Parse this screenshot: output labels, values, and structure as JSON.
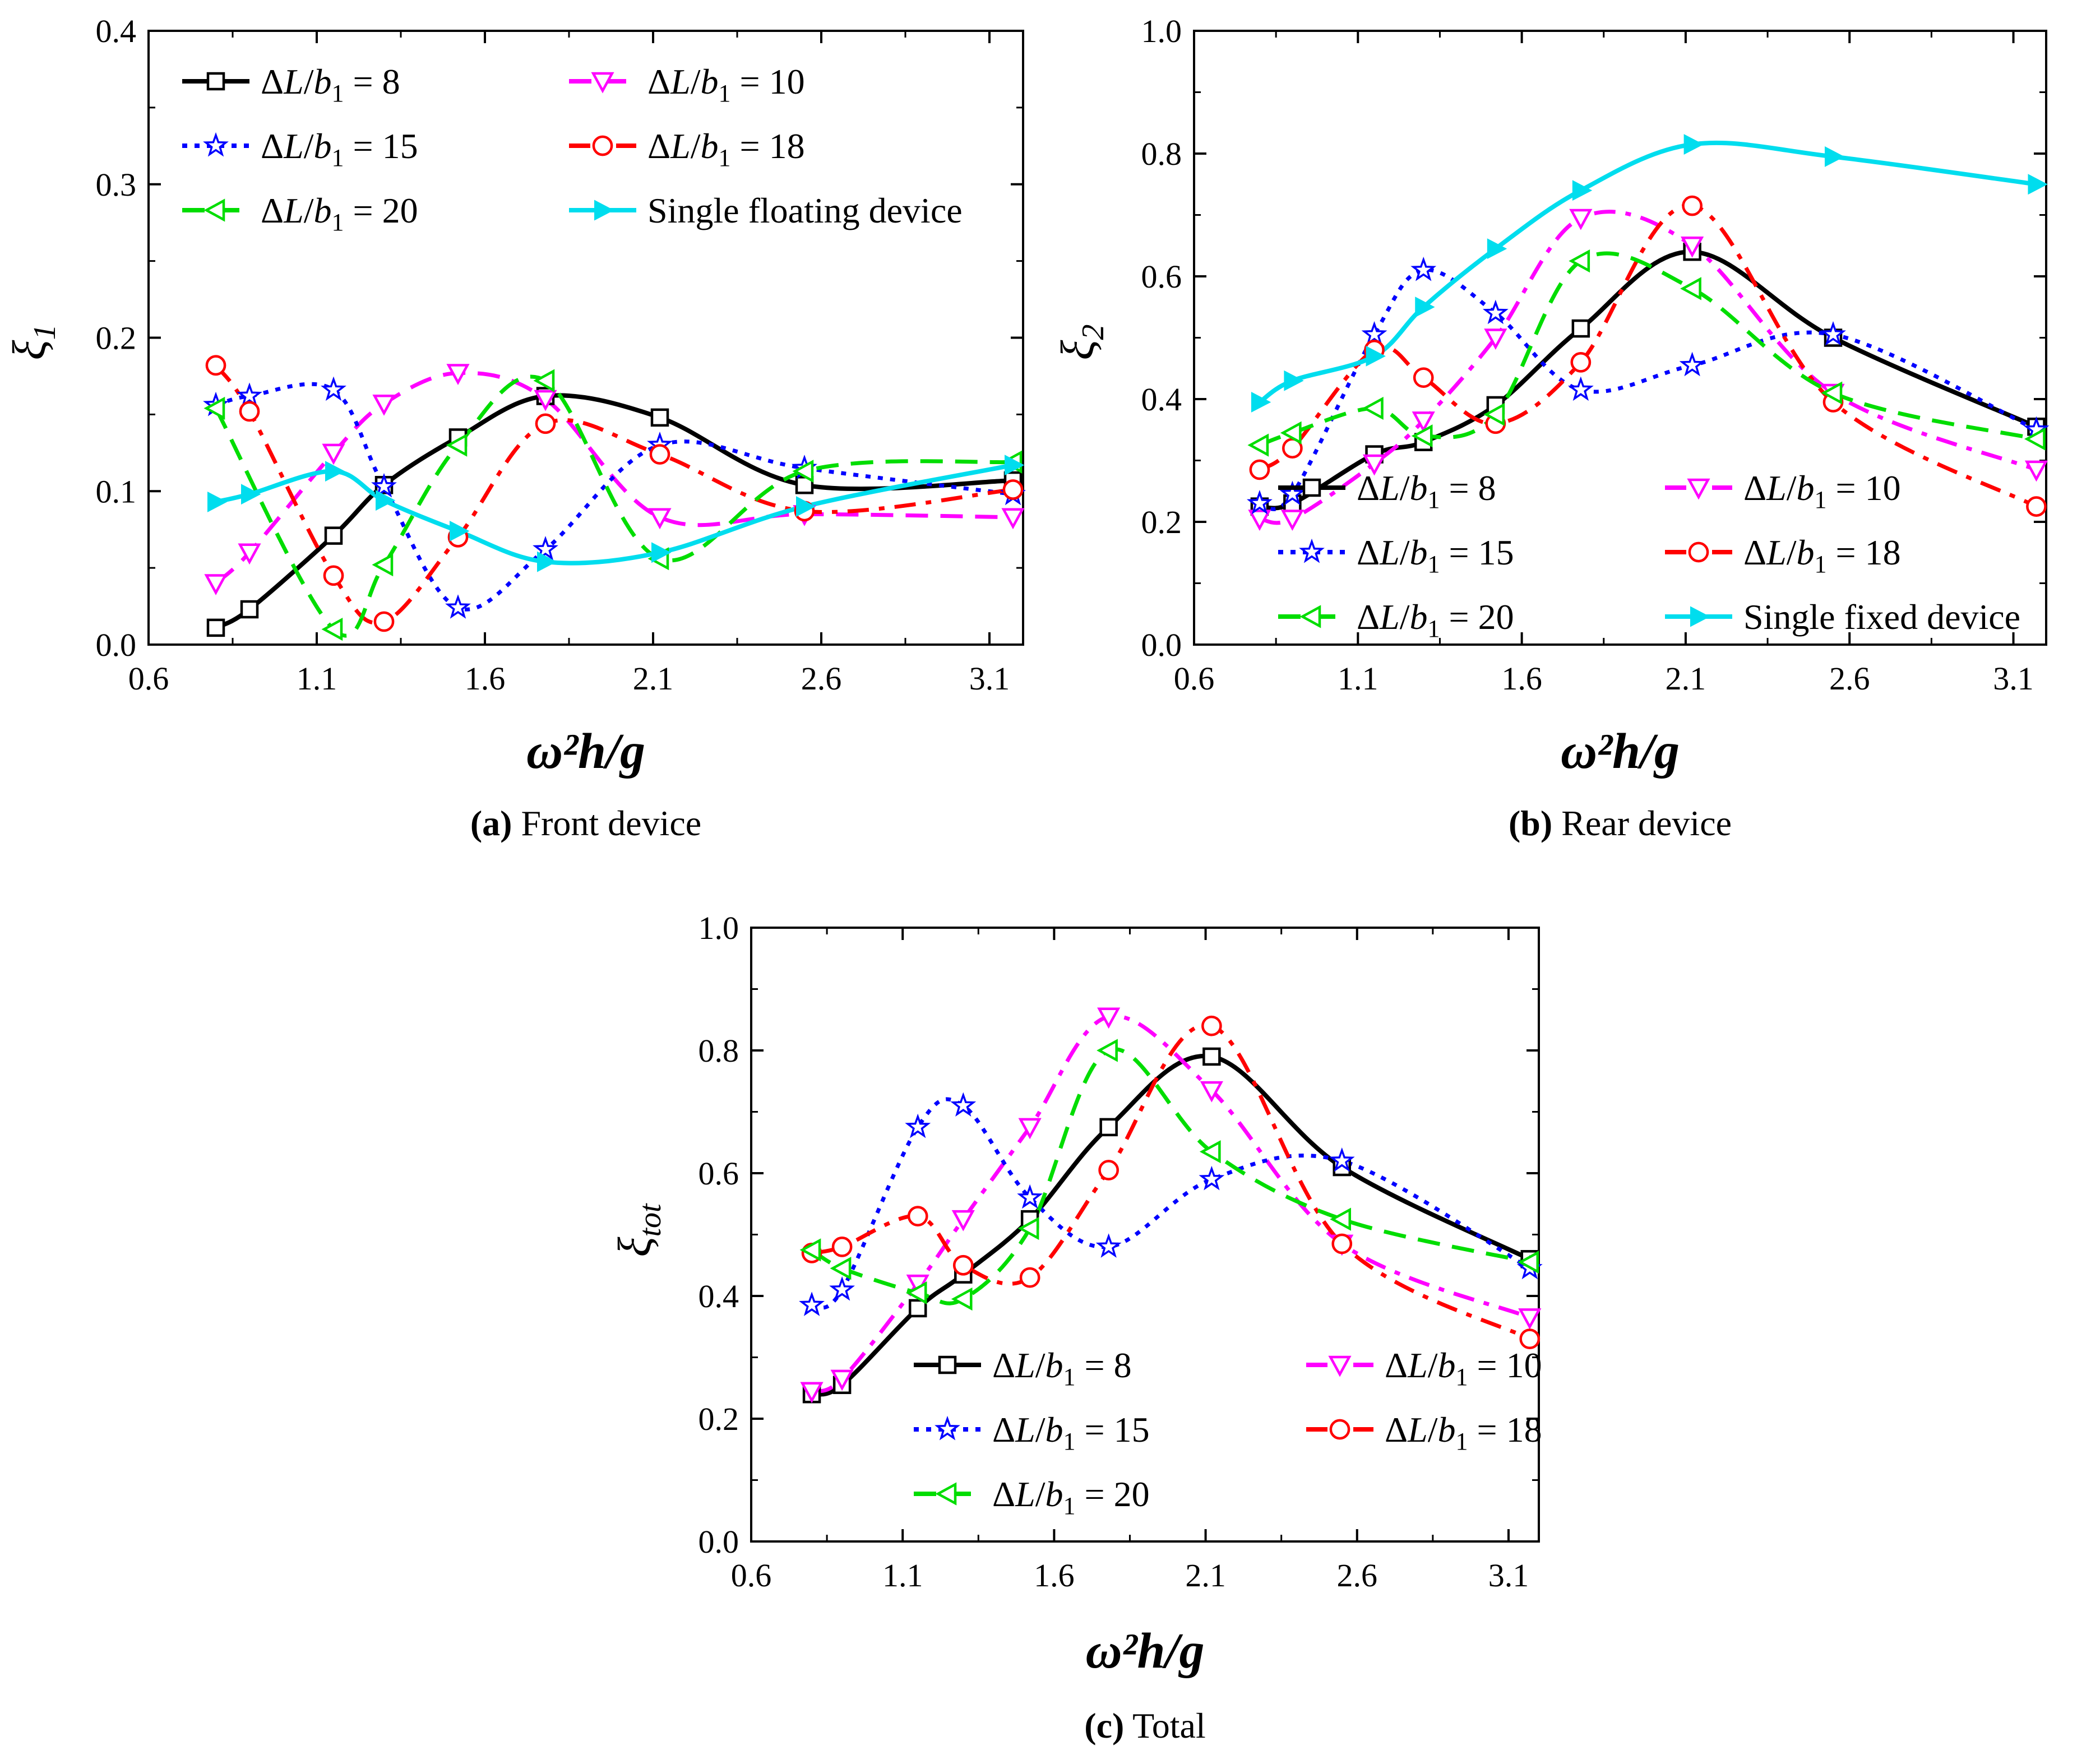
{
  "figure": {
    "xlabel": "ω²h/g",
    "legend_math_prefix": "ΔL/b",
    "legend_math_sub": "1",
    "legend_math_eq": " = "
  },
  "chart_data": [
    {
      "type": "line",
      "id": "a",
      "caption_letter": "(a)",
      "caption_text": "Front device",
      "ylabel_main": "ξ",
      "ylabel_sub": "1",
      "xlabel": "ω²h/g",
      "xlim": [
        0.6,
        3.2
      ],
      "ylim": [
        0,
        0.4
      ],
      "xticks": [
        "0.6",
        "1.1",
        "1.6",
        "2.1",
        "2.6",
        "3.1"
      ],
      "yticks": [
        "0.0",
        "0.1",
        "0.2",
        "0.3",
        "0.4"
      ],
      "legend_position": "top-left",
      "legend_layout": "two-column",
      "series": [
        {
          "name": "8",
          "marker": "square",
          "color": "#000000",
          "dash": "solid",
          "x": [
            0.8,
            0.9,
            1.15,
            1.3,
            1.52,
            1.78,
            2.12,
            2.55,
            3.17
          ],
          "y": [
            0.011,
            0.023,
            0.071,
            0.104,
            0.135,
            0.162,
            0.148,
            0.104,
            0.107
          ]
        },
        {
          "name": "10",
          "marker": "triangle-down",
          "color": "#ff00ff",
          "dash": "dash",
          "x": [
            0.8,
            0.9,
            1.15,
            1.3,
            1.52,
            1.78,
            2.12,
            2.55,
            3.17
          ],
          "y": [
            0.04,
            0.06,
            0.125,
            0.157,
            0.177,
            0.16,
            0.083,
            0.085,
            0.083
          ]
        },
        {
          "name": "15",
          "marker": "star",
          "color": "#0000ff",
          "dash": "dot",
          "x": [
            0.8,
            0.9,
            1.15,
            1.3,
            1.52,
            1.78,
            2.12,
            2.55,
            3.17
          ],
          "y": [
            0.156,
            0.162,
            0.166,
            0.103,
            0.024,
            0.062,
            0.13,
            0.115,
            0.098
          ]
        },
        {
          "name": "18",
          "marker": "circle",
          "color": "#ff0000",
          "dash": "dashdot",
          "x": [
            0.8,
            0.9,
            1.15,
            1.3,
            1.52,
            1.78,
            2.12,
            2.55,
            3.17
          ],
          "y": [
            0.182,
            0.152,
            0.045,
            0.015,
            0.07,
            0.144,
            0.124,
            0.087,
            0.101
          ]
        },
        {
          "name": "20",
          "marker": "triangle-left",
          "color": "#00dd00",
          "dash": "dash",
          "x": [
            0.8,
            1.15,
            1.3,
            1.52,
            1.78,
            2.12,
            2.55,
            3.17
          ],
          "y": [
            0.154,
            0.01,
            0.052,
            0.13,
            0.172,
            0.056,
            0.113,
            0.119
          ]
        },
        {
          "name": "Single floating device",
          "marker": "triangle-right-filled",
          "color": "#00ddee",
          "dash": "solid",
          "x": [
            0.8,
            0.9,
            1.15,
            1.3,
            1.52,
            1.78,
            2.12,
            2.55,
            3.17
          ],
          "y": [
            0.093,
            0.098,
            0.113,
            0.094,
            0.074,
            0.054,
            0.06,
            0.09,
            0.117
          ]
        }
      ]
    },
    {
      "type": "line",
      "id": "b",
      "caption_letter": "(b)",
      "caption_text": "Rear device",
      "ylabel_main": "ξ",
      "ylabel_sub": "2",
      "xlabel": "ω²h/g",
      "xlim": [
        0.6,
        3.2
      ],
      "ylim": [
        0,
        1.0
      ],
      "xticks": [
        "0.6",
        "1.1",
        "1.6",
        "2.1",
        "2.6",
        "3.1"
      ],
      "yticks": [
        "0.0",
        "0.2",
        "0.4",
        "0.6",
        "0.8",
        "1.0"
      ],
      "legend_position": "bottom-left",
      "legend_layout": "two-column",
      "series": [
        {
          "name": "8",
          "marker": "square",
          "color": "#000000",
          "dash": "solid",
          "x": [
            0.8,
            0.9,
            1.15,
            1.3,
            1.52,
            1.78,
            2.12,
            2.55,
            3.17
          ],
          "y": [
            0.225,
            0.23,
            0.31,
            0.33,
            0.39,
            0.515,
            0.64,
            0.5,
            0.355
          ]
        },
        {
          "name": "10",
          "marker": "triangle-down",
          "color": "#ff00ff",
          "dash": "dashdot",
          "x": [
            0.8,
            0.9,
            1.15,
            1.3,
            1.52,
            1.78,
            2.12,
            2.55,
            3.17
          ],
          "y": [
            0.205,
            0.205,
            0.295,
            0.365,
            0.5,
            0.695,
            0.65,
            0.41,
            0.285
          ]
        },
        {
          "name": "15",
          "marker": "star",
          "color": "#0000ff",
          "dash": "dot",
          "x": [
            0.8,
            0.9,
            1.15,
            1.3,
            1.52,
            1.78,
            2.12,
            2.55,
            3.17
          ],
          "y": [
            0.23,
            0.245,
            0.505,
            0.61,
            0.54,
            0.415,
            0.455,
            0.505,
            0.35
          ]
        },
        {
          "name": "18",
          "marker": "circle",
          "color": "#ff0000",
          "dash": "dashdot",
          "x": [
            0.8,
            0.9,
            1.15,
            1.3,
            1.52,
            1.78,
            2.12,
            2.55,
            3.17
          ],
          "y": [
            0.285,
            0.32,
            0.48,
            0.435,
            0.36,
            0.46,
            0.715,
            0.395,
            0.225
          ]
        },
        {
          "name": "20",
          "marker": "triangle-left",
          "color": "#00dd00",
          "dash": "dash",
          "x": [
            0.8,
            0.9,
            1.15,
            1.3,
            1.52,
            1.78,
            2.12,
            2.55,
            3.17
          ],
          "y": [
            0.325,
            0.345,
            0.385,
            0.34,
            0.375,
            0.625,
            0.58,
            0.41,
            0.335
          ]
        },
        {
          "name": "Single fixed device",
          "marker": "triangle-right-filled",
          "color": "#00ddee",
          "dash": "solid",
          "x": [
            0.8,
            0.9,
            1.15,
            1.3,
            1.52,
            1.78,
            2.12,
            2.55,
            3.17
          ],
          "y": [
            0.395,
            0.43,
            0.47,
            0.55,
            0.645,
            0.74,
            0.815,
            0.795,
            0.75
          ]
        }
      ]
    },
    {
      "type": "line",
      "id": "c",
      "caption_letter": "(c)",
      "caption_text": "Total",
      "ylabel_main": "ξ",
      "ylabel_sub": "tot",
      "xlabel": "ω²h/g",
      "xlim": [
        0.6,
        3.2
      ],
      "ylim": [
        0,
        1.0
      ],
      "xticks": [
        "0.6",
        "1.1",
        "1.6",
        "2.1",
        "2.6",
        "3.1"
      ],
      "yticks": [
        "0.0",
        "0.2",
        "0.4",
        "0.6",
        "0.8",
        "1.0"
      ],
      "legend_position": "bottom-right",
      "legend_layout": "two-column",
      "series": [
        {
          "name": "8",
          "marker": "square",
          "color": "#000000",
          "dash": "solid",
          "x": [
            0.8,
            0.9,
            1.15,
            1.3,
            1.52,
            1.78,
            2.12,
            2.55,
            3.17
          ],
          "y": [
            0.24,
            0.255,
            0.38,
            0.435,
            0.525,
            0.675,
            0.79,
            0.61,
            0.46
          ]
        },
        {
          "name": "10",
          "marker": "triangle-down",
          "color": "#ff00ff",
          "dash": "dashdot",
          "x": [
            0.8,
            0.9,
            1.15,
            1.3,
            1.52,
            1.78,
            2.12,
            2.55,
            3.17
          ],
          "y": [
            0.245,
            0.265,
            0.42,
            0.525,
            0.675,
            0.855,
            0.735,
            0.485,
            0.365
          ]
        },
        {
          "name": "15",
          "marker": "star",
          "color": "#0000ff",
          "dash": "dot",
          "x": [
            0.8,
            0.9,
            1.15,
            1.3,
            1.52,
            1.78,
            2.12,
            2.55,
            3.17
          ],
          "y": [
            0.385,
            0.41,
            0.675,
            0.71,
            0.56,
            0.48,
            0.59,
            0.62,
            0.445
          ]
        },
        {
          "name": "18",
          "marker": "circle",
          "color": "#ff0000",
          "dash": "dashdot",
          "x": [
            0.8,
            0.9,
            1.15,
            1.3,
            1.52,
            1.78,
            2.12,
            2.55,
            3.17
          ],
          "y": [
            0.47,
            0.48,
            0.53,
            0.45,
            0.43,
            0.605,
            0.84,
            0.485,
            0.33
          ]
        },
        {
          "name": "20",
          "marker": "triangle-left",
          "color": "#00dd00",
          "dash": "dash",
          "x": [
            0.8,
            0.9,
            1.15,
            1.3,
            1.52,
            1.78,
            2.12,
            2.55,
            3.17
          ],
          "y": [
            0.475,
            0.445,
            0.405,
            0.395,
            0.51,
            0.8,
            0.635,
            0.525,
            0.455
          ]
        }
      ]
    }
  ]
}
